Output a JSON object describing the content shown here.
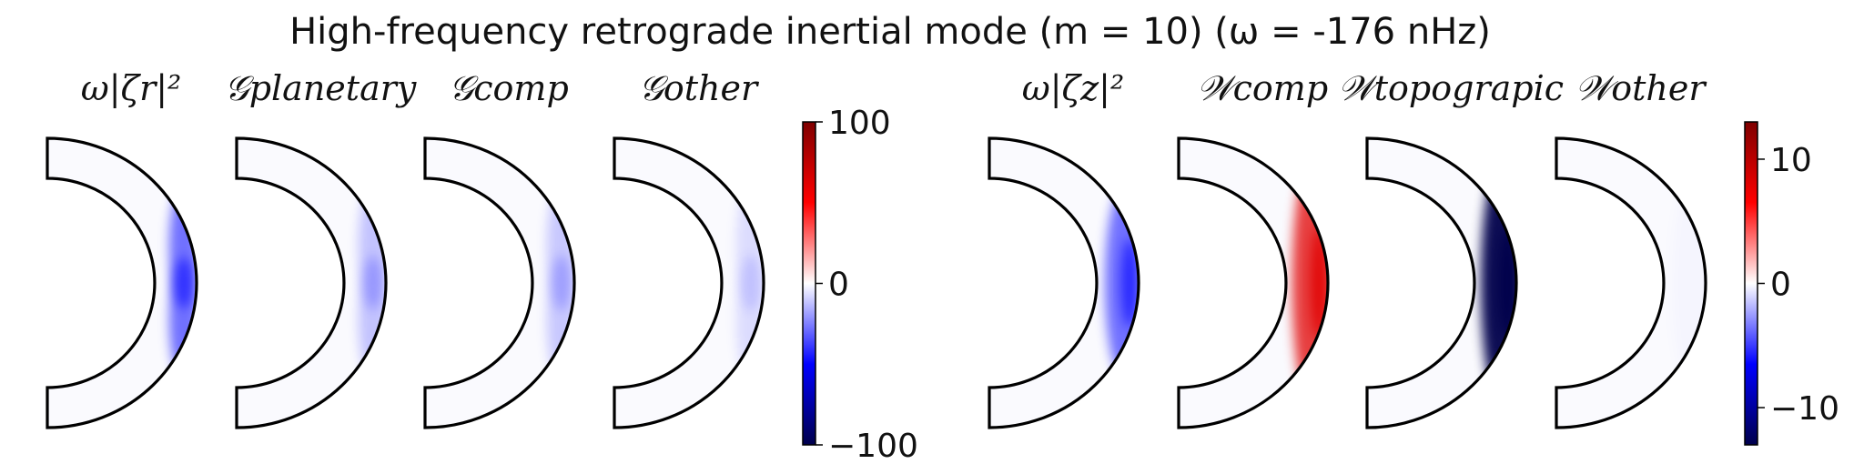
{
  "chart_data": {
    "type": "heatmap",
    "title": "High-frequency retrograde inertial mode (m = 10) (ω = -176 nHz)",
    "groups": [
      {
        "colorbar": {
          "min": -100,
          "max": 100,
          "ticks": [
            "100",
            "0",
            "−100"
          ]
        },
        "panels": [
          {
            "label": "ω|ζr|²",
            "feature": {
              "sign": -1,
              "peak": 0.55,
              "shape": "twin",
              "spread": 0.14
            }
          },
          {
            "label": "𝒢planetary",
            "feature": {
              "sign": -1,
              "peak": 0.22,
              "shape": "twin",
              "spread": 0.16
            }
          },
          {
            "label": "𝒢comp",
            "feature": {
              "sign": -1,
              "peak": 0.2,
              "shape": "twin",
              "spread": 0.17
            }
          },
          {
            "label": "𝒢other",
            "feature": {
              "sign": -1,
              "peak": 0.12,
              "shape": "twin",
              "spread": 0.18
            }
          }
        ]
      },
      {
        "colorbar": {
          "min": -13,
          "max": 13,
          "ticks": [
            "10",
            "0",
            "−10"
          ]
        },
        "panels": [
          {
            "label": "ω|ζz|²",
            "feature": {
              "sign": -1,
              "peak": 0.55,
              "shape": "equator",
              "spread": 0.25
            }
          },
          {
            "label": "𝒲comp",
            "feature": {
              "sign": 1,
              "peak": 0.75,
              "shape": "equator",
              "spread": 0.45
            }
          },
          {
            "label": "𝒲topograpic",
            "feature": {
              "sign": -1,
              "peak": 0.95,
              "shape": "equator",
              "spread": 0.42
            }
          },
          {
            "label": "𝒲other",
            "feature": {
              "sign": -1,
              "peak": 0.02,
              "shape": "equator",
              "spread": 0.3
            }
          }
        ]
      }
    ]
  }
}
